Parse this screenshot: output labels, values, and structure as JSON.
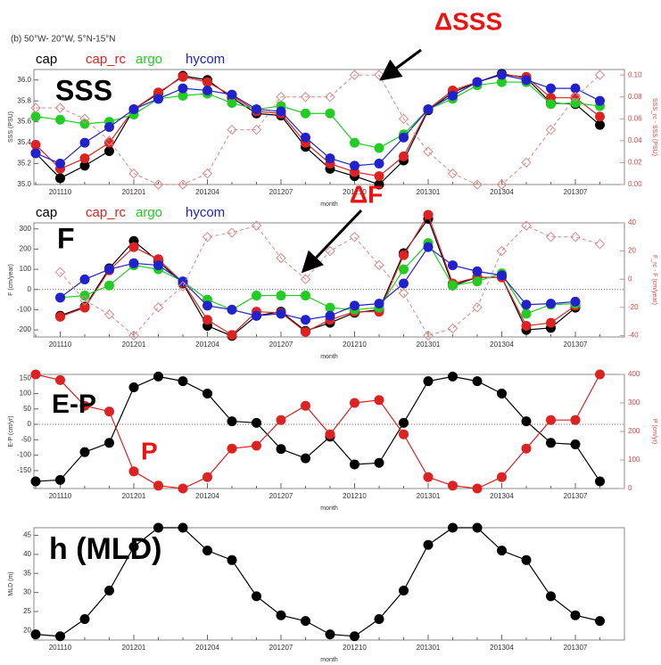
{
  "chart_data": [
    {
      "type": "line",
      "title": "(b) 50°W- 20°W, 5°N-15°N",
      "label": "SSS",
      "annotation": "ΔSSS",
      "xlabel": "month",
      "ylabel": "SSS (PSU)",
      "y2label": "SSS_rc - SSS (PSU)",
      "legend": true,
      "zero_line": false,
      "categories": [
        null,
        "201110",
        null,
        null,
        "201201",
        null,
        null,
        "201204",
        null,
        null,
        "201207",
        null,
        null,
        "201210",
        null,
        null,
        "201301",
        null,
        null,
        "201304",
        null,
        null,
        "201307",
        null
      ],
      "ylim": [
        35.0,
        36.1
      ],
      "yticks": [
        {
          "value": 35.0,
          "label": "35.0"
        },
        {
          "value": 35.2,
          "label": "35.2"
        },
        {
          "value": 35.4,
          "label": "35.4"
        },
        {
          "value": 35.6,
          "label": "35.6"
        },
        {
          "value": 35.8,
          "label": "35.8"
        },
        {
          "value": 36.0,
          "label": "36.0"
        }
      ],
      "y2lim": [
        0,
        0.105
      ],
      "y2ticks": [
        {
          "value": 0,
          "label": "0.00"
        },
        {
          "value": 0.02,
          "label": "0.02"
        },
        {
          "value": 0.04,
          "label": "0.04"
        },
        {
          "value": 0.06,
          "label": "0.06"
        },
        {
          "value": 0.08,
          "label": "0.08"
        },
        {
          "value": 0.1,
          "label": "0.10"
        }
      ],
      "series": [
        {
          "name": "cap",
          "color": "#000000",
          "values": [
            35.3,
            35.06,
            35.18,
            35.32,
            35.72,
            35.87,
            36.04,
            36.0,
            35.83,
            35.68,
            35.66,
            35.36,
            35.15,
            35.08,
            35.0,
            35.23,
            35.71,
            35.88,
            35.98,
            36.06,
            36.02,
            35.78,
            35.77,
            35.57
          ]
        },
        {
          "name": "cap_rc",
          "color": "#dd2222",
          "values": [
            35.38,
            35.15,
            35.25,
            35.4,
            35.72,
            35.88,
            36.03,
            35.98,
            35.85,
            35.7,
            35.68,
            35.4,
            35.2,
            35.12,
            35.08,
            35.27,
            35.72,
            35.9,
            35.98,
            36.05,
            36.03,
            35.83,
            35.83,
            35.65
          ]
        },
        {
          "name": "argo",
          "color": "#22cc22",
          "values": [
            35.65,
            35.62,
            35.58,
            35.6,
            35.67,
            35.82,
            35.85,
            35.87,
            35.78,
            35.72,
            35.75,
            35.68,
            35.68,
            35.4,
            35.35,
            35.48,
            35.72,
            35.82,
            35.95,
            35.98,
            35.98,
            35.77,
            35.78,
            35.75
          ]
        },
        {
          "name": "hycom",
          "color": "#2222cc",
          "values": [
            35.3,
            35.2,
            35.4,
            35.55,
            35.72,
            35.82,
            35.92,
            35.9,
            35.86,
            35.72,
            35.7,
            35.45,
            35.25,
            35.18,
            35.2,
            35.45,
            35.72,
            35.85,
            35.98,
            36.05,
            36.0,
            35.92,
            35.92,
            35.8
          ]
        },
        {
          "color": "#dd8888",
          "axis": "y2",
          "marker": "diamond",
          "dashed": true,
          "values": [
            0.07,
            0.07,
            0.06,
            0.04,
            0.01,
            0.0,
            0.0,
            0.01,
            0.05,
            0.05,
            0.08,
            0.08,
            0.08,
            0.1,
            0.1,
            0.06,
            0.03,
            0.01,
            0.0,
            0.0,
            0.02,
            0.05,
            0.08,
            0.1
          ]
        }
      ]
    },
    {
      "type": "line",
      "label": "F",
      "annotation": "ΔF",
      "xlabel": "month",
      "ylabel": "F (cm/year)",
      "y2label": "F_rc - F (cm/year)",
      "legend": true,
      "zero_line": true,
      "categories": [
        null,
        "201110",
        null,
        null,
        "201201",
        null,
        null,
        "201204",
        null,
        null,
        "201207",
        null,
        null,
        "201210",
        null,
        null,
        "201301",
        null,
        null,
        "201304",
        null,
        null,
        "201307",
        null
      ],
      "ylim": [
        -235,
        330
      ],
      "yticks": [
        -200,
        -100,
        0,
        100,
        200,
        300
      ],
      "y2lim": [
        -41,
        40
      ],
      "y2ticks": [
        -40,
        -20,
        0,
        20,
        40
      ],
      "series": [
        {
          "name": "cap",
          "color": "#000000",
          "values": [
            null,
            -130,
            -85,
            105,
            240,
            140,
            30,
            -180,
            -230,
            -130,
            -110,
            -205,
            -165,
            -115,
            -100,
            180,
            350,
            20,
            60,
            60,
            -200,
            -190,
            -90,
            null
          ]
        },
        {
          "name": "cap_rc",
          "color": "#dd2222",
          "values": [
            null,
            -135,
            -90,
            95,
            210,
            150,
            35,
            -150,
            -225,
            -110,
            -115,
            -210,
            -150,
            -110,
            -110,
            170,
            370,
            30,
            60,
            60,
            -180,
            -165,
            -80,
            null
          ]
        },
        {
          "name": "argo",
          "color": "#22cc22",
          "values": [
            null,
            -40,
            -30,
            20,
            120,
            100,
            40,
            -50,
            -100,
            -30,
            -30,
            -30,
            -90,
            -100,
            -90,
            100,
            230,
            20,
            40,
            80,
            -120,
            -75,
            -70,
            null
          ]
        },
        {
          "name": "hycom",
          "color": "#2222cc",
          "values": [
            null,
            -40,
            50,
            100,
            130,
            120,
            40,
            -80,
            -100,
            -130,
            -120,
            -150,
            -130,
            -80,
            -70,
            30,
            210,
            120,
            90,
            70,
            -75,
            -70,
            -60,
            null
          ]
        },
        {
          "color": "#dd8888",
          "axis": "y2",
          "marker": "diamond",
          "dashed": true,
          "values": [
            null,
            5,
            -15,
            -25,
            -40,
            -20,
            -5,
            30,
            33,
            38,
            15,
            0,
            20,
            30,
            10,
            -10,
            -40,
            -35,
            -20,
            20,
            38,
            30,
            30,
            25
          ]
        }
      ]
    },
    {
      "type": "line",
      "label": "E-P",
      "annotation": "P",
      "xlabel": "month",
      "ylabel": "E-P (cm/yr)",
      "y2label": "P (cm/yr)",
      "legend": false,
      "zero_line": true,
      "categories": [
        null,
        "201110",
        null,
        null,
        "201201",
        null,
        null,
        "201204",
        null,
        null,
        "201207",
        null,
        null,
        "201210",
        null,
        null,
        "201301",
        null,
        null,
        "201304",
        null,
        null,
        "201307",
        null
      ],
      "ylim": [
        -208,
        162
      ],
      "yticks": [
        -150,
        -100,
        -50,
        0,
        50,
        100,
        150
      ],
      "y2lim": [
        0,
        400
      ],
      "y2ticks": [
        0,
        100,
        200,
        300,
        400
      ],
      "series": [
        {
          "color": "#000000",
          "values": [
            -185,
            -180,
            -90,
            -60,
            120,
            155,
            140,
            100,
            10,
            5,
            -80,
            -110,
            -40,
            -130,
            -125,
            5,
            140,
            155,
            140,
            100,
            10,
            -60,
            -65,
            -185
          ]
        },
        {
          "color": "#dd2222",
          "axis": "y2",
          "values": [
            400,
            380,
            290,
            270,
            60,
            10,
            0,
            40,
            140,
            150,
            240,
            290,
            190,
            300,
            310,
            190,
            40,
            10,
            0,
            40,
            140,
            240,
            240,
            400
          ]
        }
      ]
    },
    {
      "type": "line",
      "label": "h (MLD)",
      "xlabel": "month",
      "ylabel": "MLD (m)",
      "legend": false,
      "zero_line": false,
      "categories": [
        null,
        "201110",
        null,
        null,
        "201201",
        null,
        null,
        "201204",
        null,
        null,
        "201207",
        null,
        null,
        "201210",
        null,
        null,
        "201301",
        null,
        null,
        "201304",
        null,
        null,
        "201307",
        null
      ],
      "ylim": [
        17.5,
        47
      ],
      "yticks": [
        20,
        25,
        30,
        35,
        40,
        45
      ],
      "series": [
        {
          "color": "#000000",
          "values": [
            19,
            18.5,
            23,
            30.5,
            42,
            47,
            47,
            41,
            38.5,
            29,
            24,
            22.5,
            19,
            18.5,
            23,
            30.5,
            42.5,
            47,
            47,
            41,
            38.5,
            29,
            24,
            22.5
          ]
        }
      ]
    }
  ]
}
